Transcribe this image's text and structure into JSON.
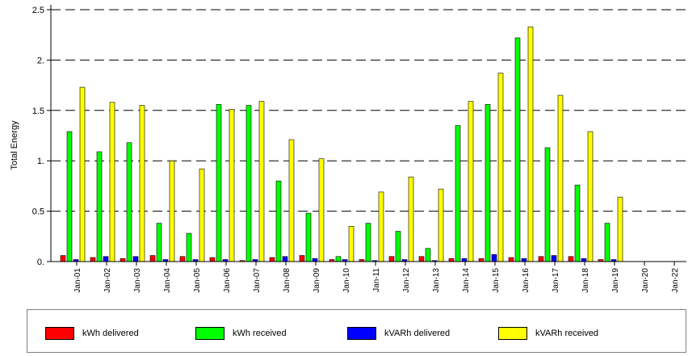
{
  "chart_data": {
    "type": "bar",
    "title": "",
    "xlabel": "",
    "ylabel": "Total Energy",
    "ylim": [
      0,
      2.5
    ],
    "yticks": [
      "0.",
      "0.5",
      "1.",
      "1.5",
      "2.",
      "2.5"
    ],
    "grid": true,
    "legend_position": "bottom",
    "categories": [
      "Jan-01",
      "Jan-02",
      "Jan-03",
      "Jan-04",
      "Jan-05",
      "Jan-06",
      "Jan-07",
      "Jan-08",
      "Jan-09",
      "Jan-10",
      "Jan-11",
      "Jan-12",
      "Jan-13",
      "Jan-14",
      "Jan-15",
      "Jan-16",
      "Jan-17",
      "Jan-18",
      "Jan-19",
      "Jan-20",
      "Jan-22"
    ],
    "series": [
      {
        "name": "kWh delivered",
        "color": "#ff0000",
        "values": [
          0.06,
          0.04,
          0.03,
          0.06,
          0.05,
          0.04,
          0.01,
          0.04,
          0.06,
          0.02,
          0.02,
          0.05,
          0.05,
          0.03,
          0.03,
          0.04,
          0.05,
          0.05,
          0.02,
          0,
          0
        ]
      },
      {
        "name": "kWh received",
        "color": "#00ff00",
        "values": [
          1.29,
          1.09,
          1.18,
          0.38,
          0.28,
          1.56,
          1.55,
          0.8,
          0.48,
          0.05,
          0.38,
          0.3,
          0.13,
          1.35,
          1.56,
          2.22,
          1.13,
          0.76,
          0.38,
          0,
          0
        ]
      },
      {
        "name": "kVARh delivered",
        "color": "#0000ff",
        "values": [
          0.02,
          0.05,
          0.05,
          0.02,
          0.02,
          0.02,
          0.02,
          0.05,
          0.03,
          0.02,
          0.01,
          0.02,
          0.01,
          0.03,
          0.07,
          0.03,
          0.06,
          0.03,
          0.02,
          0,
          0
        ]
      },
      {
        "name": "kVARh received",
        "color": "#ffff00",
        "values": [
          1.73,
          1.58,
          1.55,
          1.0,
          0.92,
          1.51,
          1.59,
          1.21,
          1.02,
          0.35,
          0.69,
          0.84,
          0.72,
          1.59,
          1.87,
          2.33,
          1.65,
          1.29,
          0.64,
          0,
          0
        ]
      }
    ]
  }
}
